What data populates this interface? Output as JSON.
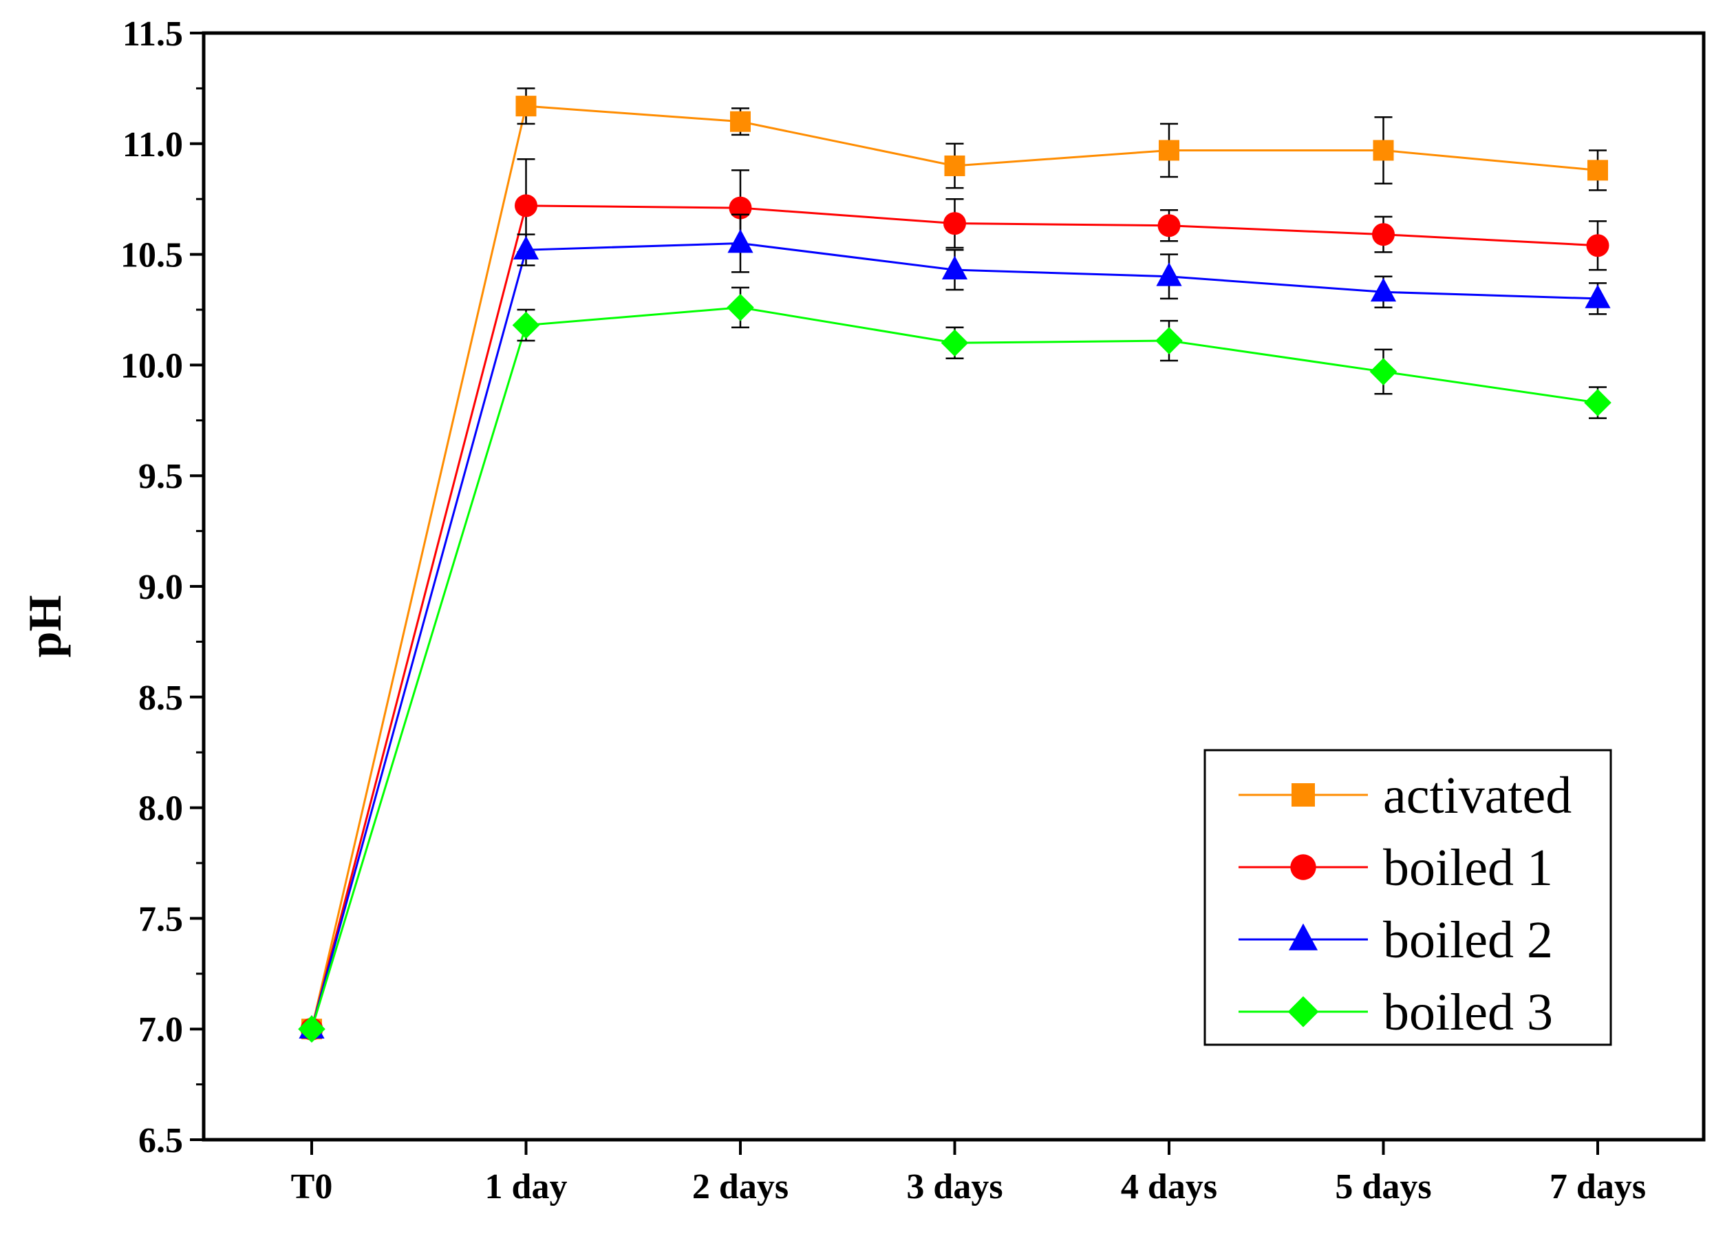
{
  "chart_data": {
    "type": "line",
    "title": "",
    "xlabel": "",
    "ylabel": "pH",
    "categories": [
      "T0",
      "1 day",
      "2 days",
      "3 days",
      "4 days",
      "5 days",
      "7 days"
    ],
    "ylim": [
      6.5,
      11.5
    ],
    "yticks": [
      "6.5",
      "7.0",
      "7.5",
      "8.0",
      "8.5",
      "9.0",
      "9.5",
      "10.0",
      "10.5",
      "11.0",
      "11.5"
    ],
    "grid": false,
    "legend_position": "bottom-right",
    "series": [
      {
        "name": "activated",
        "color": "#ff8c00",
        "marker": "square",
        "values": [
          7.0,
          11.17,
          11.1,
          10.9,
          10.97,
          10.97,
          10.88
        ],
        "errors": [
          0,
          0.08,
          0.06,
          0.1,
          0.12,
          0.15,
          0.09
        ]
      },
      {
        "name": "boiled 1",
        "color": "#ff0000",
        "marker": "circle",
        "values": [
          7.0,
          10.72,
          10.71,
          10.64,
          10.63,
          10.59,
          10.54
        ],
        "errors": [
          0,
          0.21,
          0.17,
          0.11,
          0.07,
          0.08,
          0.11
        ]
      },
      {
        "name": "boiled 2",
        "color": "#0000ff",
        "marker": "triangle",
        "values": [
          7.0,
          10.52,
          10.55,
          10.43,
          10.4,
          10.33,
          10.3
        ],
        "errors": [
          0,
          0.07,
          0.13,
          0.09,
          0.1,
          0.07,
          0.07
        ]
      },
      {
        "name": "boiled 3",
        "color": "#00ff00",
        "marker": "diamond",
        "values": [
          7.0,
          10.18,
          10.26,
          10.1,
          10.11,
          9.97,
          9.83
        ],
        "errors": [
          0,
          0.07,
          0.09,
          0.07,
          0.09,
          0.1,
          0.07
        ]
      }
    ]
  }
}
